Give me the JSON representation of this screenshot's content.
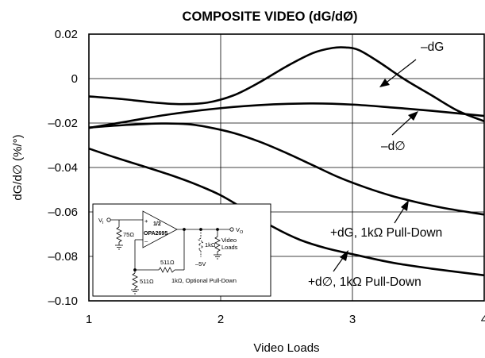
{
  "chart_data": {
    "type": "line",
    "title": "COMPOSITE VIDEO (dG/dØ)",
    "xlabel": "Video Loads",
    "ylabel": "dG/d∅ (%/°)",
    "xlim": [
      1,
      4
    ],
    "ylim": [
      -0.1,
      0.02
    ],
    "x_ticks": [
      1,
      2,
      3,
      4
    ],
    "x_tick_labels": [
      "1",
      "2",
      "3",
      "4"
    ],
    "y_ticks": [
      0.02,
      0,
      -0.02,
      -0.04,
      -0.06,
      -0.08,
      -0.1
    ],
    "y_tick_labels": [
      "0.02",
      "0",
      "–0.02",
      "–0.04",
      "–0.06",
      "–0.08",
      "–0.10"
    ],
    "grid": true,
    "series": [
      {
        "name": "–dG",
        "x": [
          1.0,
          1.25,
          1.5,
          1.7,
          1.9,
          2.1,
          2.3,
          2.5,
          2.7,
          2.85,
          2.95,
          3.05,
          3.2,
          3.4,
          3.6,
          3.8,
          4.0
        ],
        "y": [
          -0.008,
          -0.0092,
          -0.0108,
          -0.0115,
          -0.0108,
          -0.0075,
          -0.0015,
          0.0055,
          0.0115,
          0.0138,
          0.014,
          0.0128,
          0.0075,
          -0.0005,
          -0.0075,
          -0.0145,
          -0.0192
        ]
      },
      {
        "name": "–d∅",
        "x": [
          1.0,
          1.3,
          1.6,
          2.0,
          2.4,
          2.7,
          3.0,
          3.3,
          3.6,
          4.0
        ],
        "y": [
          -0.0222,
          -0.0192,
          -0.0162,
          -0.0133,
          -0.0116,
          -0.0112,
          -0.0117,
          -0.013,
          -0.0145,
          -0.0168
        ]
      },
      {
        "name": "+dG, 1kΩ Pull-Down",
        "x": [
          1.0,
          1.3,
          1.55,
          1.75,
          1.9,
          2.1,
          2.3,
          2.5,
          2.7,
          2.9,
          3.1,
          3.3,
          3.5,
          3.7,
          4.0
        ],
        "y": [
          -0.022,
          -0.0208,
          -0.0202,
          -0.0205,
          -0.0218,
          -0.0245,
          -0.0285,
          -0.0335,
          -0.039,
          -0.0445,
          -0.049,
          -0.0528,
          -0.0558,
          -0.0583,
          -0.0612
        ]
      },
      {
        "name": "+d∅, 1kΩ Pull-Down",
        "x": [
          1.0,
          1.2,
          1.4,
          1.6,
          1.8,
          2.0,
          2.2,
          2.4,
          2.6,
          2.8,
          3.0,
          3.3,
          3.6,
          4.0
        ],
        "y": [
          -0.0315,
          -0.0355,
          -0.0392,
          -0.043,
          -0.0473,
          -0.0525,
          -0.0595,
          -0.0668,
          -0.0725,
          -0.0763,
          -0.079,
          -0.0828,
          -0.0855,
          -0.0885
        ]
      }
    ]
  },
  "inset": {
    "vi": "V",
    "vi_sub": "I",
    "vo": "V",
    "vo_sub": "O",
    "r_in": "75Ω",
    "opamp_line1": "1/2",
    "opamp_line2": "OPA2695",
    "plus": "+",
    "minus": "–",
    "rf": "511Ω",
    "rg": "511Ω",
    "r_pull": "1kΩ",
    "neg_supply": "–5V",
    "loads_line1": "Video",
    "loads_line2": "Loads",
    "caption": "1kΩ, Optional Pull-Down"
  }
}
